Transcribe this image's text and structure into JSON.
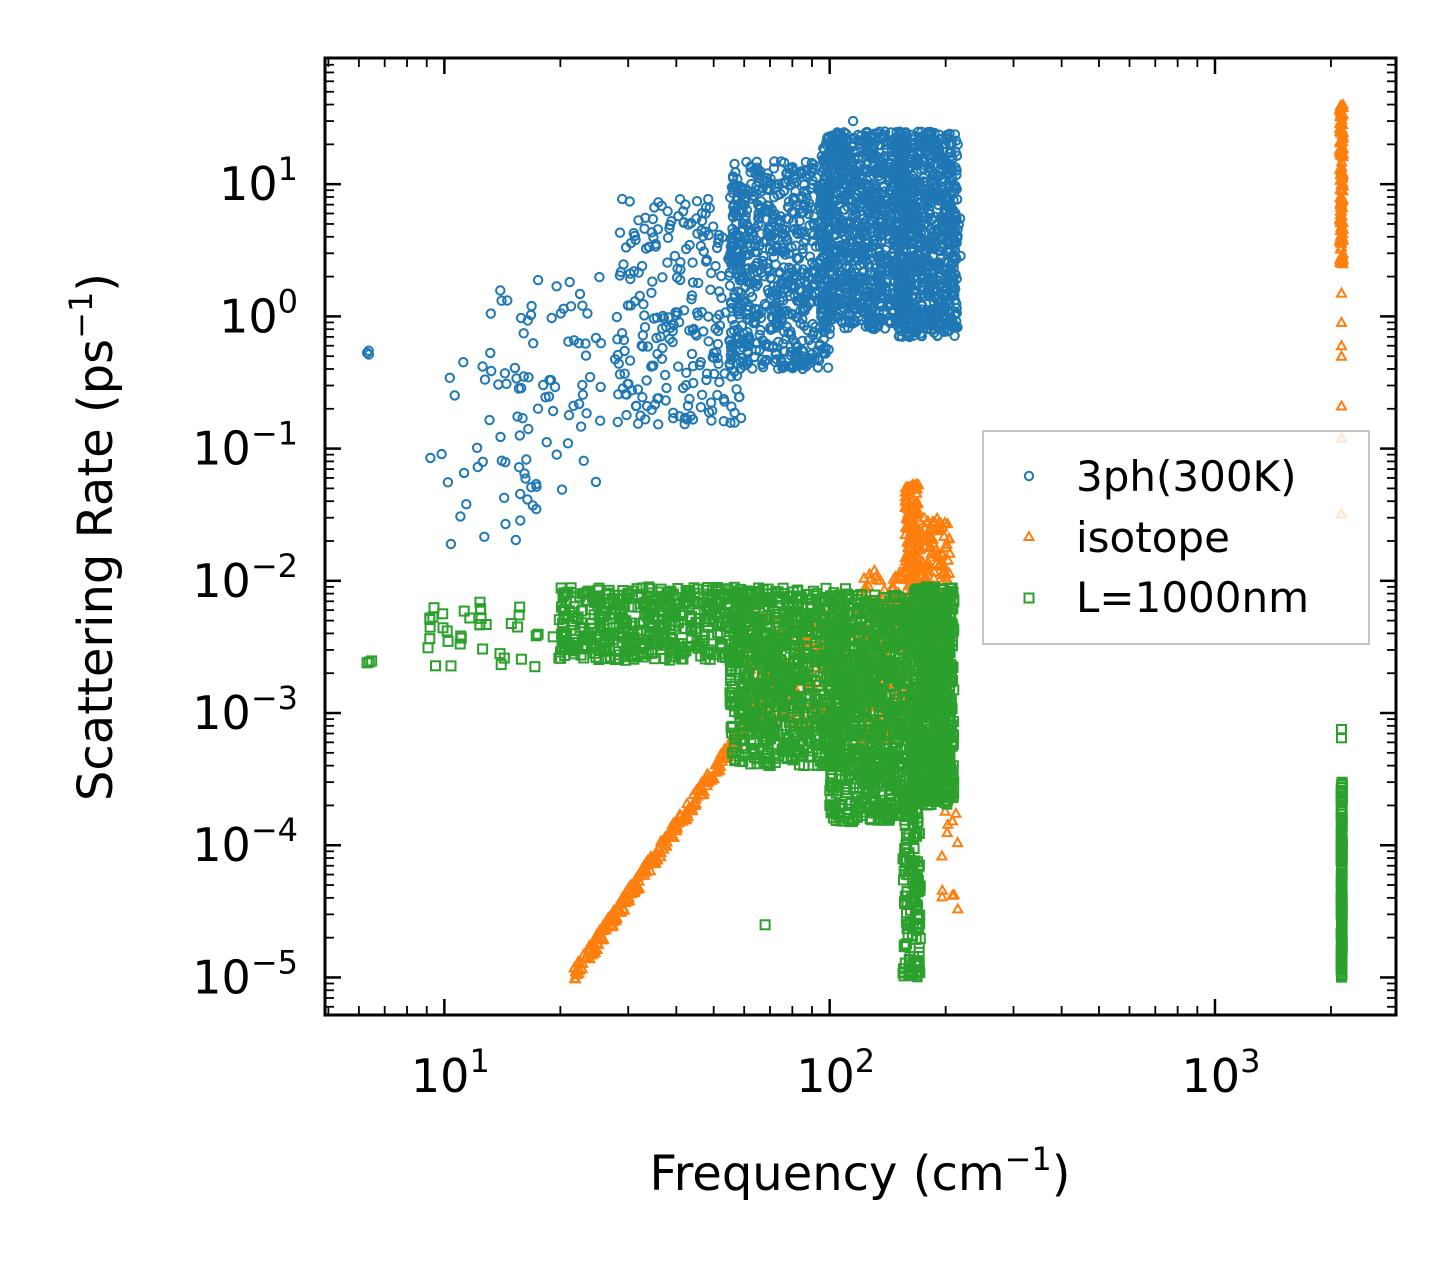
{
  "chart_data": {
    "type": "scatter",
    "x_scale": "log",
    "y_scale": "log",
    "xlim": [
      4.9,
      2950
    ],
    "ylim": [
      5.2e-06,
      90
    ],
    "xlabel": {
      "text": "Frequency (cm",
      "sup": "−1",
      "tail": ")"
    },
    "ylabel": {
      "text": "Scattering Rate (ps",
      "sup": "−1",
      "tail": ")"
    },
    "x_ticks": [
      {
        "value": 10,
        "base": "10",
        "exp": "1"
      },
      {
        "value": 100,
        "base": "10",
        "exp": "2"
      },
      {
        "value": 1000,
        "base": "10",
        "exp": "3"
      }
    ],
    "y_ticks": [
      {
        "value": 10,
        "base": "10",
        "exp": "1"
      },
      {
        "value": 1,
        "base": "10",
        "exp": "0"
      },
      {
        "value": 0.1,
        "base": "10",
        "exp": "−1"
      },
      {
        "value": 0.01,
        "base": "10",
        "exp": "−2"
      },
      {
        "value": 0.001,
        "base": "10",
        "exp": "−3"
      },
      {
        "value": 0.0001,
        "base": "10",
        "exp": "−4"
      },
      {
        "value": 1e-05,
        "base": "10",
        "exp": "−5"
      }
    ],
    "legend_position": "center-right",
    "series": [
      {
        "name": "3ph(300K)",
        "marker": "circle",
        "color": "#1f77b4",
        "clusters": [
          {
            "x": [
              6.3,
              6.4
            ],
            "y": [
              0.5,
              0.55
            ],
            "n": 2
          },
          {
            "x": [
              9,
              20
            ],
            "y": [
              0.02,
              0.5
            ],
            "n": 30
          },
          {
            "x": [
              13,
              30
            ],
            "y": [
              0.05,
              2.0
            ],
            "n": 70
          },
          {
            "x": [
              28,
              60
            ],
            "y": [
              0.15,
              8.0
            ],
            "n": 260
          },
          {
            "x": [
              55,
              100
            ],
            "y": [
              0.4,
              15
            ],
            "n": 700
          },
          {
            "x": [
              95,
              160
            ],
            "y": [
              0.8,
              25
            ],
            "n": 1000
          },
          {
            "x": [
              150,
              215
            ],
            "y": [
              0.7,
              25
            ],
            "n": 800
          },
          {
            "x": [
              208,
              220
            ],
            "y": [
              2.0,
              6.0
            ],
            "n": 6
          }
        ],
        "sample_points": [
          {
            "x": 6.3,
            "y": 0.53
          },
          {
            "x": 9.2,
            "y": 0.085
          },
          {
            "x": 10.4,
            "y": 0.019
          },
          {
            "x": 11.2,
            "y": 0.45
          },
          {
            "x": 11.4,
            "y": 0.038
          },
          {
            "x": 13.2,
            "y": 1.05
          },
          {
            "x": 20.2,
            "y": 0.049
          },
          {
            "x": 115,
            "y": 30
          },
          {
            "x": 161,
            "y": 0.7
          },
          {
            "x": 218,
            "y": 5.5
          }
        ]
      },
      {
        "name": "isotope",
        "marker": "triangle",
        "color": "#ff7f0e",
        "trend": {
          "x": [
            21.5,
            75
          ],
          "y": [
            1e-05,
            0.002
          ],
          "n": 320,
          "spread": 0.12
        },
        "clusters": [
          {
            "x": [
              60,
              120
            ],
            "y": [
              0.0008,
              0.006
            ],
            "n": 250
          },
          {
            "x": [
              120,
              160
            ],
            "y": [
              0.0006,
              0.012
            ],
            "n": 250
          },
          {
            "x": [
              157,
              170
            ],
            "y": [
              0.005,
              0.055
            ],
            "n": 180
          },
          {
            "x": [
              170,
              205
            ],
            "y": [
              0.001,
              0.03
            ],
            "n": 220
          },
          {
            "x": [
              195,
              215
            ],
            "y": [
              3e-05,
              0.0003
            ],
            "n": 12
          },
          {
            "x": [
              2110,
              2150
            ],
            "y": [
              2.5,
              40
            ],
            "n": 140
          }
        ],
        "sample_points": [
          {
            "x": 2130,
            "y": 1.5
          },
          {
            "x": 2130,
            "y": 0.9
          },
          {
            "x": 2130,
            "y": 0.6
          },
          {
            "x": 2130,
            "y": 0.5
          },
          {
            "x": 2130,
            "y": 0.21
          },
          {
            "x": 2130,
            "y": 0.12
          },
          {
            "x": 2130,
            "y": 0.032
          },
          {
            "x": 215,
            "y": 3.3e-05
          }
        ]
      },
      {
        "name": "L=1000nm",
        "marker": "square",
        "color": "#2ca02c",
        "clusters": [
          {
            "x": [
              6.3,
              6.5
            ],
            "y": [
              0.0024,
              0.0025
            ],
            "n": 2
          },
          {
            "x": [
              9,
              20
            ],
            "y": [
              0.0022,
              0.007
            ],
            "n": 40
          },
          {
            "x": [
              20,
              60
            ],
            "y": [
              0.0025,
              0.009
            ],
            "n": 500
          },
          {
            "x": [
              55,
              110
            ],
            "y": [
              0.0004,
              0.009
            ],
            "n": 800
          },
          {
            "x": [
              100,
              165
            ],
            "y": [
              0.00015,
              0.008
            ],
            "n": 900
          },
          {
            "x": [
              155,
              172
            ],
            "y": [
              1e-05,
              0.0003
            ],
            "n": 150
          },
          {
            "x": [
              165,
              210
            ],
            "y": [
              0.0002,
              0.009
            ],
            "n": 900
          },
          {
            "x": [
              2125,
              2140
            ],
            "y": [
              1e-05,
              0.0003
            ],
            "n": 200
          }
        ],
        "sample_points": [
          {
            "x": 6.3,
            "y": 0.0024
          },
          {
            "x": 68,
            "y": 2.5e-05
          },
          {
            "x": 2130,
            "y": 0.00075
          },
          {
            "x": 2130,
            "y": 0.00065
          },
          {
            "x": 208,
            "y": 0.0088
          }
        ]
      }
    ]
  }
}
